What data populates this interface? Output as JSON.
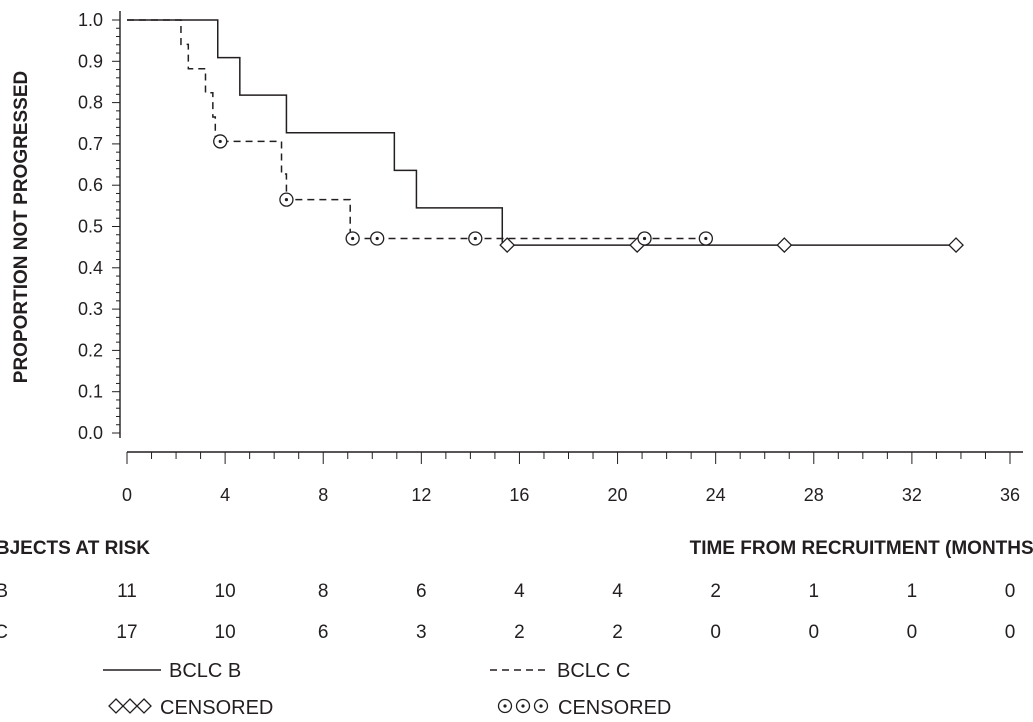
{
  "chart_data": {
    "type": "line",
    "title": "",
    "ylabel": "PROPORTION NOT PROGRESSED",
    "xlabel": "TIME FROM RECRUITMENT (MONTHS)",
    "xlim": [
      0,
      36
    ],
    "ylim": [
      0,
      1
    ],
    "x_ticks": [
      "0",
      "4",
      "8",
      "12",
      "16",
      "20",
      "24",
      "28",
      "32",
      "36"
    ],
    "y_ticks": [
      "0.0",
      "0.1",
      "0.2",
      "0.3",
      "0.4",
      "0.5",
      "0.6",
      "0.7",
      "0.8",
      "0.9",
      "1.0"
    ],
    "grid": false,
    "series": [
      {
        "name": "BCLC B",
        "line_style": "solid",
        "marker": "diamond",
        "steps": [
          [
            0,
            1.0
          ],
          [
            3.7,
            0.909
          ],
          [
            4.6,
            0.818
          ],
          [
            6.5,
            0.727
          ],
          [
            10.9,
            0.636
          ],
          [
            11.8,
            0.545
          ],
          [
            15.3,
            0.455
          ],
          [
            33.8,
            0.455
          ]
        ],
        "censored": [
          [
            15.5,
            0.455
          ],
          [
            20.8,
            0.455
          ],
          [
            26.8,
            0.455
          ],
          [
            33.8,
            0.455
          ]
        ]
      },
      {
        "name": "BCLC C",
        "line_style": "dashed",
        "marker": "circle-dot",
        "steps": [
          [
            0,
            1.0
          ],
          [
            2.2,
            0.941
          ],
          [
            2.5,
            0.882
          ],
          [
            3.2,
            0.824
          ],
          [
            3.5,
            0.765
          ],
          [
            3.6,
            0.706
          ],
          [
            6.3,
            0.627
          ],
          [
            6.5,
            0.565
          ],
          [
            9.1,
            0.471
          ],
          [
            23.6,
            0.471
          ]
        ],
        "censored": [
          [
            3.8,
            0.706
          ],
          [
            6.5,
            0.565
          ],
          [
            9.2,
            0.471
          ],
          [
            10.2,
            0.471
          ],
          [
            14.2,
            0.471
          ],
          [
            21.1,
            0.471
          ],
          [
            23.6,
            0.471
          ]
        ]
      }
    ]
  },
  "risk_table": {
    "heading": "SUBJECTS AT RISK",
    "time_label": "TIME FROM RECRUITMENT (MONTHS)",
    "rows": [
      {
        "label": "BCLC B",
        "values": [
          "11",
          "10",
          "8",
          "6",
          "4",
          "4",
          "2",
          "1",
          "1",
          "0"
        ]
      },
      {
        "label": "BCLC C",
        "values": [
          "17",
          "10",
          "6",
          "3",
          "2",
          "2",
          "0",
          "0",
          "0",
          "0"
        ]
      }
    ]
  },
  "legend": {
    "items": [
      {
        "label": "BCLC B",
        "style": "solid"
      },
      {
        "label": "BCLC C",
        "style": "dashed"
      },
      {
        "label": "CENSORED",
        "marker": "diamond"
      },
      {
        "label": "CENSORED",
        "marker": "circle-dot"
      }
    ]
  },
  "colors": {
    "ink": "#231f20",
    "background": "#ffffff"
  }
}
